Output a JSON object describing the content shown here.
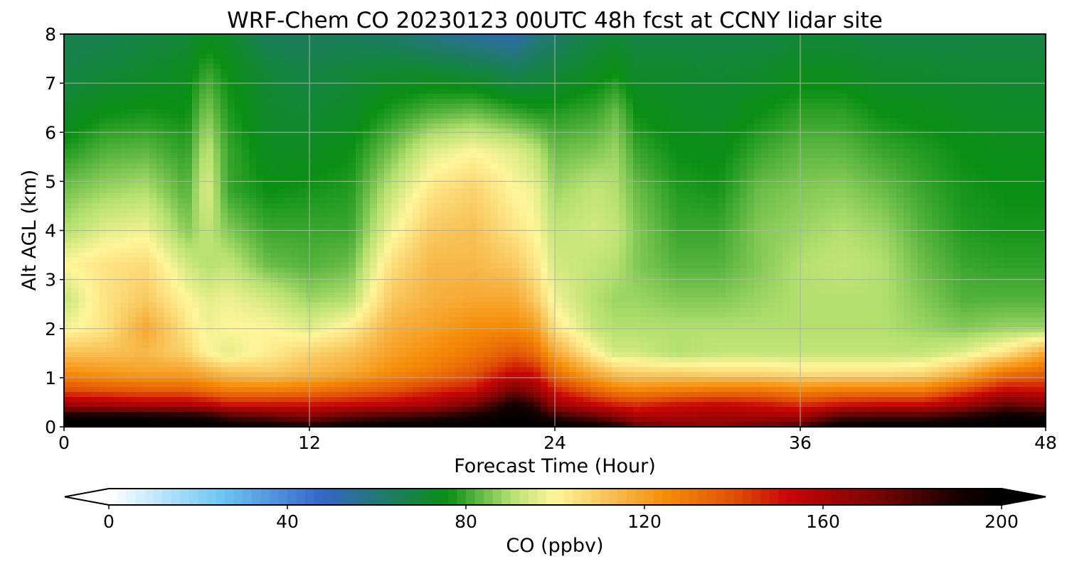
{
  "chart_data": {
    "type": "heatmap",
    "title": "WRF-Chem CO  20230123 00UTC 48h fcst at CCNY lidar site",
    "xlabel": "Forecast Time (Hour)",
    "ylabel": "Alt AGL (km)",
    "xlim": [
      0,
      48
    ],
    "ylim": [
      0,
      8
    ],
    "xticks": [
      "0",
      "12",
      "24",
      "36",
      "48"
    ],
    "yticks": [
      "0",
      "1",
      "2",
      "3",
      "4",
      "5",
      "6",
      "7",
      "8"
    ],
    "grid": true,
    "colorbar": {
      "label": "CO  (ppbv)",
      "ticks": [
        "0",
        "40",
        "80",
        "120",
        "160",
        "200"
      ],
      "range": [
        0,
        200
      ],
      "extend": "both",
      "stops": [
        {
          "value": 0,
          "color": "#ffffff"
        },
        {
          "value": 25,
          "color": "#6ec6f5"
        },
        {
          "value": 48,
          "color": "#3465c8"
        },
        {
          "value": 62,
          "color": "#1f7a6a"
        },
        {
          "value": 76,
          "color": "#0a8f14"
        },
        {
          "value": 90,
          "color": "#b4e070"
        },
        {
          "value": 100,
          "color": "#fff59a"
        },
        {
          "value": 112,
          "color": "#f8c055"
        },
        {
          "value": 125,
          "color": "#f58c08"
        },
        {
          "value": 140,
          "color": "#e05006"
        },
        {
          "value": 152,
          "color": "#c80606"
        },
        {
          "value": 172,
          "color": "#7a0404"
        },
        {
          "value": 190,
          "color": "#180000"
        },
        {
          "value": 200,
          "color": "#000000"
        }
      ]
    },
    "profile_heights_km": [
      0,
      0.2,
      0.45,
      0.75,
      1.1,
      1.5,
      2.0,
      2.6,
      3.3,
      4.0,
      4.8,
      5.6,
      6.4,
      7.2,
      8.0
    ],
    "columns": [
      {
        "t": 0,
        "co": [
          200,
          195,
          162,
          140,
          125,
          112,
          98,
          92,
          100,
          90,
          85,
          78,
          72,
          68,
          66
        ]
      },
      {
        "t": 2,
        "co": [
          200,
          195,
          160,
          138,
          122,
          112,
          104,
          104,
          104,
          96,
          88,
          82,
          76,
          70,
          66
        ]
      },
      {
        "t": 4,
        "co": [
          200,
          195,
          158,
          136,
          120,
          114,
          118,
          110,
          106,
          98,
          90,
          83,
          77,
          72,
          68
        ]
      },
      {
        "t": 6,
        "co": [
          200,
          192,
          158,
          136,
          120,
          108,
          104,
          100,
          94,
          86,
          82,
          79,
          76,
          74,
          70
        ]
      },
      {
        "t": 7,
        "co": [
          200,
          190,
          155,
          132,
          116,
          100,
          98,
          96,
          90,
          92,
          96,
          92,
          86,
          80,
          74
        ]
      },
      {
        "t": 8,
        "co": [
          198,
          182,
          150,
          128,
          112,
          96,
          100,
          98,
          92,
          86,
          80,
          80,
          78,
          76,
          72
        ]
      },
      {
        "t": 10,
        "co": [
          196,
          176,
          150,
          128,
          110,
          102,
          100,
          94,
          84,
          80,
          76,
          74,
          72,
          70,
          64
        ]
      },
      {
        "t": 12,
        "co": [
          190,
          170,
          150,
          130,
          114,
          108,
          96,
          88,
          82,
          80,
          77,
          74,
          71,
          68,
          64
        ]
      },
      {
        "t": 14,
        "co": [
          196,
          178,
          152,
          134,
          118,
          112,
          102,
          90,
          84,
          80,
          78,
          76,
          73,
          70,
          64
        ]
      },
      {
        "t": 16,
        "co": [
          200,
          182,
          155,
          138,
          125,
          120,
          116,
          110,
          105,
          98,
          92,
          85,
          78,
          72,
          62
        ]
      },
      {
        "t": 18,
        "co": [
          200,
          186,
          160,
          145,
          130,
          125,
          120,
          116,
          114,
          110,
          104,
          96,
          82,
          72,
          58
        ]
      },
      {
        "t": 20,
        "co": [
          200,
          192,
          172,
          150,
          138,
          130,
          125,
          118,
          114,
          112,
          108,
          100,
          84,
          70,
          54
        ]
      },
      {
        "t": 22,
        "co": [
          200,
          198,
          192,
          172,
          152,
          138,
          126,
          118,
          110,
          104,
          100,
          96,
          80,
          66,
          52
        ]
      },
      {
        "t": 23,
        "co": [
          200,
          196,
          185,
          165,
          150,
          134,
          122,
          110,
          104,
          100,
          98,
          92,
          78,
          68,
          58
        ]
      },
      {
        "t": 24,
        "co": [
          200,
          186,
          164,
          148,
          132,
          118,
          104,
          98,
          94,
          92,
          88,
          84,
          78,
          70,
          62
        ]
      },
      {
        "t": 26,
        "co": [
          196,
          176,
          152,
          134,
          116,
          100,
          92,
          90,
          92,
          94,
          92,
          86,
          80,
          74,
          68
        ]
      },
      {
        "t": 27,
        "co": [
          190,
          168,
          148,
          128,
          110,
          94,
          90,
          88,
          90,
          92,
          90,
          88,
          84,
          76,
          70
        ]
      },
      {
        "t": 28,
        "co": [
          178,
          160,
          145,
          126,
          108,
          94,
          90,
          88,
          86,
          86,
          84,
          80,
          76,
          72,
          68
        ]
      },
      {
        "t": 30,
        "co": [
          170,
          160,
          150,
          128,
          108,
          90,
          90,
          86,
          82,
          80,
          78,
          76,
          74,
          72,
          68
        ]
      },
      {
        "t": 32,
        "co": [
          168,
          162,
          152,
          130,
          106,
          92,
          90,
          86,
          82,
          80,
          77,
          75,
          73,
          71,
          68
        ]
      },
      {
        "t": 34,
        "co": [
          175,
          162,
          150,
          130,
          106,
          92,
          90,
          88,
          86,
          86,
          84,
          80,
          76,
          72,
          68
        ]
      },
      {
        "t": 36,
        "co": [
          180,
          162,
          145,
          126,
          104,
          92,
          90,
          90,
          90,
          88,
          86,
          83,
          79,
          74,
          70
        ]
      },
      {
        "t": 38,
        "co": [
          200,
          180,
          150,
          128,
          104,
          92,
          90,
          90,
          92,
          90,
          87,
          83,
          79,
          74,
          70
        ]
      },
      {
        "t": 40,
        "co": [
          200,
          182,
          152,
          128,
          104,
          92,
          90,
          90,
          90,
          88,
          84,
          80,
          76,
          72,
          68
        ]
      },
      {
        "t": 42,
        "co": [
          200,
          182,
          152,
          128,
          106,
          92,
          88,
          86,
          84,
          82,
          80,
          78,
          75,
          72,
          68
        ]
      },
      {
        "t": 44,
        "co": [
          200,
          188,
          162,
          140,
          115,
          96,
          86,
          82,
          80,
          78,
          77,
          76,
          74,
          71,
          68
        ]
      },
      {
        "t": 46,
        "co": [
          200,
          196,
          176,
          152,
          130,
          104,
          88,
          82,
          79,
          77,
          76,
          75,
          73,
          71,
          68
        ]
      },
      {
        "t": 48,
        "co": [
          200,
          194,
          170,
          150,
          135,
          118,
          88,
          82,
          79,
          77,
          76,
          75,
          73,
          71,
          68
        ]
      }
    ]
  }
}
